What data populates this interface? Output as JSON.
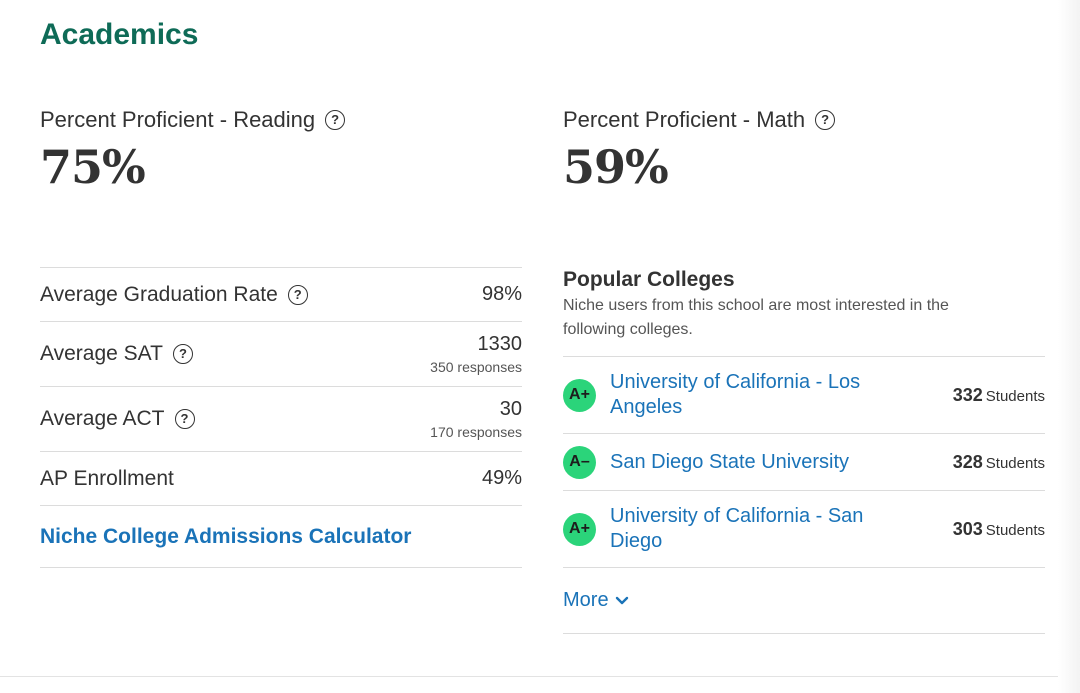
{
  "section": {
    "title": "Academics"
  },
  "proficiency": {
    "reading": {
      "label": "Percent Proficient - Reading",
      "value": "75%",
      "help_icon": "question-circle-icon"
    },
    "math": {
      "label": "Percent Proficient - Math",
      "value": "59%",
      "help_icon": "question-circle-icon"
    }
  },
  "stats": {
    "graduation": {
      "label": "Average Graduation Rate",
      "value": "98%"
    },
    "sat": {
      "label": "Average SAT",
      "value": "1330",
      "responses": "350 responses"
    },
    "act": {
      "label": "Average ACT",
      "value": "30",
      "responses": "170 responses"
    },
    "ap": {
      "label": "AP Enrollment",
      "value": "49%"
    },
    "calculator_link": "Niche College Admissions Calculator"
  },
  "popular_colleges": {
    "title": "Popular Colleges",
    "description": "Niche users from this school are most interested in the following colleges.",
    "items": [
      {
        "grade": "A+",
        "name": "University of California - Los Angeles",
        "count": "332",
        "unit": "Students"
      },
      {
        "grade": "A–",
        "name": "San Diego State University",
        "count": "328",
        "unit": "Students"
      },
      {
        "grade": "A+",
        "name": "University of California - San Diego",
        "count": "303",
        "unit": "Students"
      }
    ],
    "more_label": "More",
    "more_icon": "chevron-down-icon"
  },
  "colors": {
    "title_green": "#0e6b57",
    "link_blue": "#1a73b8",
    "grade_green": "#2bd47a"
  }
}
